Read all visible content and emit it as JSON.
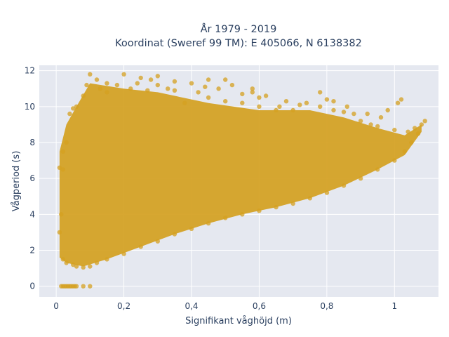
{
  "chart_data": {
    "type": "scatter",
    "title_line1": "År 1979 - 2019",
    "title_line2": "Koordinat (Sweref 99 TM): E 405066, N 6138382",
    "xlabel": "Signifikant våghöjd (m)",
    "ylabel": "Vågperiod (s)",
    "xlim": [
      -0.05,
      1.13
    ],
    "ylim": [
      -0.6,
      12.3
    ],
    "x_ticks": [
      0,
      0.2,
      0.4,
      0.6,
      0.8,
      1
    ],
    "x_tick_labels": [
      "0",
      "0,2",
      "0,4",
      "0,6",
      "0,8",
      "1"
    ],
    "y_ticks": [
      0,
      2,
      4,
      6,
      8,
      10,
      12
    ],
    "y_tick_labels": [
      "0",
      "2",
      "4",
      "6",
      "8",
      "10",
      "12"
    ],
    "grid": true,
    "background": "#e5e8f0",
    "gridline_color": "#ffffff",
    "marker_color": "#d4a020",
    "marker_opacity": 0.75,
    "series": [
      {
        "points": [
          [
            0.015,
            0
          ],
          [
            0.02,
            0
          ],
          [
            0.025,
            0
          ],
          [
            0.03,
            0
          ],
          [
            0.035,
            0
          ],
          [
            0.04,
            0
          ],
          [
            0.045,
            0
          ],
          [
            0.05,
            0
          ],
          [
            0.055,
            0
          ],
          [
            0.06,
            0
          ],
          [
            0.08,
            0
          ],
          [
            0.1,
            0
          ],
          [
            0.01,
            6.6
          ],
          [
            0.02,
            6.5
          ],
          [
            0.015,
            4.0
          ],
          [
            0.01,
            3.0
          ],
          [
            0.02,
            1.5
          ],
          [
            0.03,
            1.3
          ],
          [
            0.05,
            1.2
          ],
          [
            0.06,
            1.1
          ],
          [
            0.08,
            1.05
          ],
          [
            0.1,
            1.1
          ],
          [
            0.12,
            1.3
          ],
          [
            0.15,
            1.5
          ],
          [
            0.2,
            1.8
          ],
          [
            0.25,
            2.2
          ],
          [
            0.3,
            2.5
          ],
          [
            0.35,
            2.9
          ],
          [
            0.4,
            3.2
          ],
          [
            0.45,
            3.5
          ],
          [
            0.5,
            3.8
          ],
          [
            0.55,
            4.0
          ],
          [
            0.6,
            4.2
          ],
          [
            0.65,
            4.4
          ],
          [
            0.7,
            4.6
          ],
          [
            0.75,
            4.9
          ],
          [
            0.8,
            5.2
          ],
          [
            0.85,
            5.6
          ],
          [
            0.9,
            6.0
          ],
          [
            0.95,
            6.5
          ],
          [
            1.0,
            7.0
          ],
          [
            1.03,
            7.5
          ],
          [
            1.05,
            8.0
          ],
          [
            1.07,
            8.5
          ],
          [
            1.08,
            9.0
          ],
          [
            1.09,
            9.2
          ],
          [
            1.06,
            8.8
          ],
          [
            1.0,
            8.7
          ],
          [
            0.95,
            8.9
          ],
          [
            0.9,
            9.2
          ],
          [
            0.88,
            9.6
          ],
          [
            0.85,
            9.7
          ],
          [
            0.82,
            9.8
          ],
          [
            0.8,
            10.4
          ],
          [
            0.82,
            10.3
          ],
          [
            0.78,
            10.0
          ],
          [
            0.72,
            10.1
          ],
          [
            0.7,
            9.8
          ],
          [
            0.65,
            9.8
          ],
          [
            0.6,
            10.0
          ],
          [
            0.58,
            11.0
          ],
          [
            0.55,
            10.2
          ],
          [
            0.5,
            10.3
          ],
          [
            0.48,
            11.0
          ],
          [
            0.5,
            11.5
          ],
          [
            0.45,
            10.5
          ],
          [
            0.42,
            10.8
          ],
          [
            0.4,
            11.3
          ],
          [
            0.38,
            10.2
          ],
          [
            0.35,
            10.9
          ],
          [
            0.33,
            11.0
          ],
          [
            0.3,
            11.2
          ],
          [
            0.28,
            11.5
          ],
          [
            0.25,
            11.6
          ],
          [
            0.22,
            11.0
          ],
          [
            0.2,
            11.8
          ],
          [
            0.18,
            11.2
          ],
          [
            0.15,
            11.3
          ],
          [
            0.12,
            11.5
          ],
          [
            0.1,
            11.8
          ],
          [
            0.09,
            11.2
          ],
          [
            0.08,
            10.6
          ],
          [
            0.06,
            10.0
          ],
          [
            0.05,
            9.9
          ],
          [
            0.04,
            9.6
          ],
          [
            0.03,
            8.0
          ],
          [
            0.02,
            7.5
          ],
          [
            1.01,
            10.2
          ],
          [
            1.02,
            10.4
          ],
          [
            0.98,
            9.8
          ],
          [
            0.93,
            9.0
          ],
          [
            0.3,
            11.7
          ],
          [
            0.78,
            10.8
          ],
          [
            0.45,
            11.5
          ],
          [
            0.52,
            11.2
          ],
          [
            0.62,
            10.6
          ],
          [
            0.68,
            10.3
          ],
          [
            0.74,
            10.2
          ],
          [
            0.86,
            10.0
          ],
          [
            0.92,
            9.6
          ],
          [
            0.96,
            9.4
          ],
          [
            1.04,
            8.6
          ],
          [
            0.35,
            11.4
          ],
          [
            0.27,
            10.9
          ],
          [
            0.15,
            10.8
          ],
          [
            0.13,
            11.0
          ],
          [
            0.24,
            11.3
          ],
          [
            0.55,
            10.7
          ],
          [
            0.6,
            10.5
          ],
          [
            0.66,
            10.0
          ],
          [
            0.58,
            10.8
          ],
          [
            0.44,
            11.1
          ]
        ]
      }
    ]
  }
}
